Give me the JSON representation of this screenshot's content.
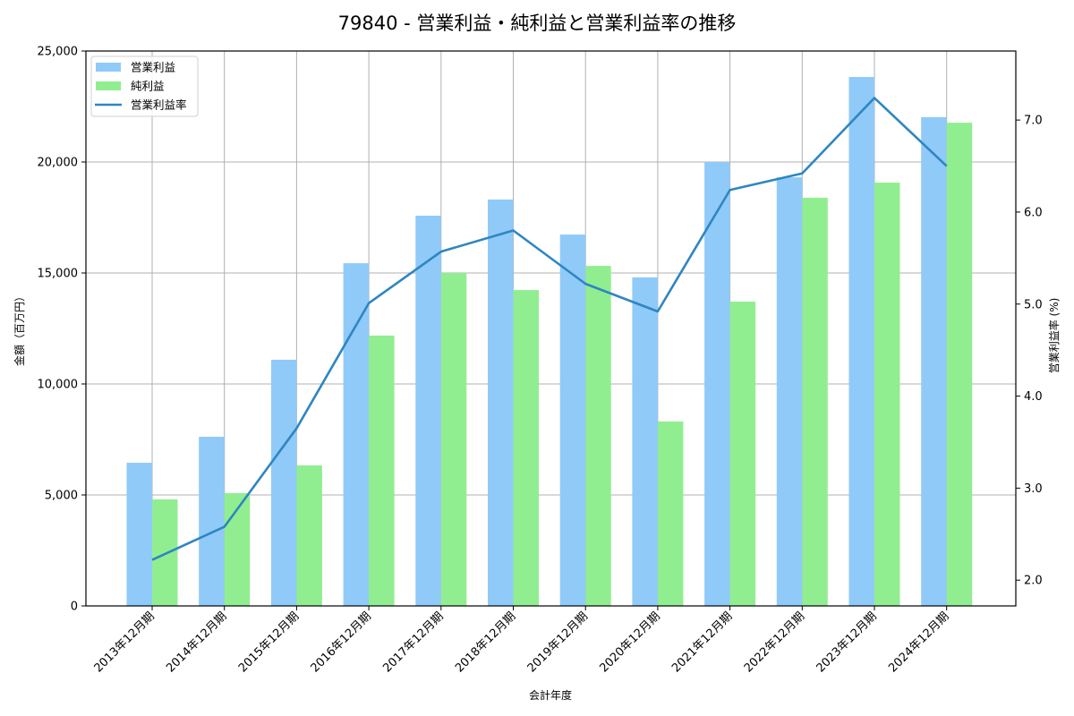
{
  "chart_data": {
    "type": "bar",
    "title": "79840 - 営業利益・純利益と営業利益率の推移",
    "xlabel": "会計年度",
    "ylabel": "金額（百万円）",
    "ylabel_right": "営業利益率 (%)",
    "categories": [
      "2013年12月期",
      "2014年12月期",
      "2015年12月期",
      "2016年12月期",
      "2017年12月期",
      "2018年12月期",
      "2019年12月期",
      "2020年12月期",
      "2021年12月期",
      "2022年12月期",
      "2023年12月期",
      "2024年12月期"
    ],
    "series": [
      {
        "name": "営業利益",
        "type": "bar",
        "axis": "left",
        "color": "#90CAF9",
        "values": [
          6450,
          7620,
          11090,
          15440,
          17580,
          18310,
          16730,
          14800,
          20000,
          19310,
          23830,
          22020
        ]
      },
      {
        "name": "純利益",
        "type": "bar",
        "axis": "left",
        "color": "#90EE90",
        "values": [
          4800,
          5080,
          6330,
          12180,
          15000,
          14230,
          15320,
          8310,
          13710,
          18390,
          19070,
          21770
        ]
      },
      {
        "name": "営業利益率",
        "type": "line",
        "axis": "right",
        "color": "#2E86C1",
        "values": [
          2.22,
          2.58,
          3.65,
          5.01,
          5.57,
          5.8,
          5.22,
          4.92,
          6.24,
          6.42,
          7.24,
          6.5
        ]
      }
    ],
    "ylim": [
      0,
      25000
    ],
    "yticks": [
      0,
      5000,
      10000,
      15000,
      20000,
      25000
    ],
    "ytick_labels": [
      "0",
      "5,000",
      "10,000",
      "15,000",
      "20,000",
      "25,000"
    ],
    "ylim_right": [
      1.72,
      7.75
    ],
    "yticks_right": [
      2.0,
      3.0,
      4.0,
      5.0,
      6.0,
      7.0
    ],
    "ytick_labels_right": [
      "2.0",
      "3.0",
      "4.0",
      "5.0",
      "6.0",
      "7.0"
    ],
    "grid": true,
    "legend_position": "upper left"
  }
}
